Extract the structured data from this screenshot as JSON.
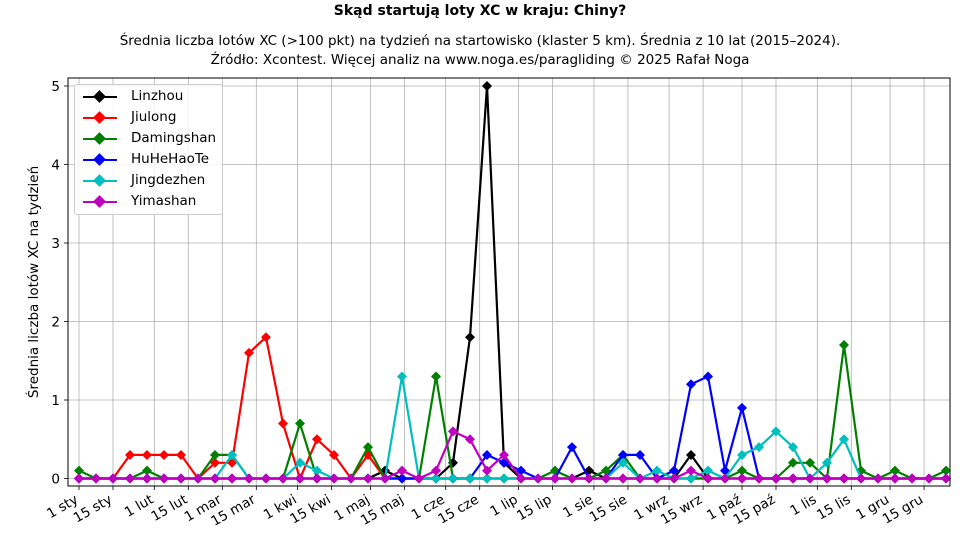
{
  "title": "Skąd startują loty XC w kraju: Chiny?",
  "subtitle_line1": "Średnia liczba lotów XC (>100 pkt) na tydzień na startowisko (klaster 5 km). Średnia z 10 lat (2015–2024).",
  "subtitle_line2": "Źródło: Xcontest. Więcej analiz na www.noga.es/paragliding © 2025 Rafał Noga",
  "chart_data": {
    "type": "line",
    "xlabel": "",
    "ylabel": "Średnia liczba lotów XC na tydzień",
    "ylim": [
      -0.1,
      5.1
    ],
    "yticks": [
      0,
      1,
      2,
      3,
      4,
      5
    ],
    "grid": true,
    "legend_position": "top-left",
    "x_weeks": [
      1,
      2,
      3,
      4,
      5,
      6,
      7,
      8,
      9,
      10,
      11,
      12,
      13,
      14,
      15,
      16,
      17,
      18,
      19,
      20,
      21,
      22,
      23,
      24,
      25,
      26,
      27,
      28,
      29,
      30,
      31,
      32,
      33,
      34,
      35,
      36,
      37,
      38,
      39,
      40,
      41,
      42,
      43,
      44,
      45,
      46,
      47,
      48,
      49,
      50,
      51,
      52
    ],
    "xticks": [
      {
        "label": "1 sty",
        "week": 0.0
      },
      {
        "label": "15 sty",
        "week": 2.0
      },
      {
        "label": "1 lut",
        "week": 4.43
      },
      {
        "label": "15 lut",
        "week": 6.43
      },
      {
        "label": "1 mar",
        "week": 8.43
      },
      {
        "label": "15 mar",
        "week": 10.43
      },
      {
        "label": "1 kwi",
        "week": 12.86
      },
      {
        "label": "15 kwi",
        "week": 14.86
      },
      {
        "label": "1 maj",
        "week": 17.14
      },
      {
        "label": "15 maj",
        "week": 19.14
      },
      {
        "label": "1 cze",
        "week": 21.57
      },
      {
        "label": "15 cze",
        "week": 23.57
      },
      {
        "label": "1 lip",
        "week": 25.86
      },
      {
        "label": "15 lip",
        "week": 27.86
      },
      {
        "label": "1 sie",
        "week": 30.29
      },
      {
        "label": "15 sie",
        "week": 32.29
      },
      {
        "label": "1 wrz",
        "week": 34.71
      },
      {
        "label": "15 wrz",
        "week": 36.71
      },
      {
        "label": "1 paź",
        "week": 39.0
      },
      {
        "label": "15 paź",
        "week": 41.0
      },
      {
        "label": "1 lis",
        "week": 43.43
      },
      {
        "label": "15 lis",
        "week": 45.43
      },
      {
        "label": "1 gru",
        "week": 47.71
      },
      {
        "label": "15 gru",
        "week": 49.71
      }
    ],
    "series": [
      {
        "name": "Linzhou",
        "color": "#000000",
        "values": [
          0,
          0,
          0,
          0,
          0,
          0,
          0,
          0,
          0,
          0,
          0,
          0,
          0,
          0,
          0,
          0,
          0,
          0,
          0.1,
          0,
          0,
          0,
          0.2,
          1.8,
          5.0,
          0.2,
          0,
          0,
          0,
          0,
          0.1,
          0,
          0,
          0,
          0,
          0,
          0.3,
          0,
          0,
          0,
          0,
          0,
          0,
          0,
          0,
          0,
          0,
          0,
          0,
          0,
          0,
          0
        ]
      },
      {
        "name": "Jiulong",
        "color": "#ff0000",
        "values": [
          0,
          0,
          0,
          0.3,
          0.3,
          0.3,
          0.3,
          0,
          0.2,
          0.2,
          1.6,
          1.8,
          0.7,
          0,
          0.5,
          0.3,
          0,
          0.3,
          0,
          0,
          0,
          0,
          0,
          0,
          0,
          0,
          0,
          0,
          0,
          0,
          0,
          0,
          0,
          0,
          0,
          0,
          0,
          0,
          0,
          0,
          0,
          0,
          0,
          0,
          0,
          0,
          0,
          0,
          0,
          0,
          0,
          0
        ]
      },
      {
        "name": "Damingshan",
        "color": "#008000",
        "values": [
          0.1,
          0,
          0,
          0,
          0.1,
          0,
          0,
          0,
          0.3,
          0.3,
          0,
          0,
          0,
          0.7,
          0,
          0,
          0,
          0.4,
          0,
          0,
          0,
          1.3,
          0,
          0,
          0,
          0,
          0,
          0,
          0.1,
          0,
          0,
          0.1,
          0.3,
          0,
          0,
          0,
          0,
          0,
          0,
          0.1,
          0,
          0,
          0.2,
          0.2,
          0,
          1.7,
          0.1,
          0,
          0.1,
          0,
          0,
          0.1
        ]
      },
      {
        "name": "HuHeHaoTe",
        "color": "#0000ff",
        "values": [
          0,
          0,
          0,
          0,
          0,
          0,
          0,
          0,
          0,
          0,
          0,
          0,
          0,
          0,
          0,
          0,
          0,
          0,
          0,
          0,
          0,
          0,
          0,
          0,
          0.3,
          0.2,
          0.1,
          0,
          0,
          0.4,
          0,
          0,
          0.3,
          0.3,
          0,
          0.1,
          1.2,
          1.3,
          0.1,
          0.9,
          0,
          0,
          0,
          0,
          0,
          0,
          0,
          0,
          0,
          0,
          0,
          0
        ]
      },
      {
        "name": "Jingdezhen",
        "color": "#00bfbf",
        "values": [
          0,
          0,
          0,
          0,
          0,
          0,
          0,
          0,
          0,
          0.3,
          0,
          0,
          0,
          0.2,
          0.1,
          0,
          0,
          0,
          0,
          1.3,
          0,
          0,
          0,
          0,
          0,
          0,
          0,
          0,
          0,
          0,
          0,
          0,
          0.2,
          0,
          0.1,
          0,
          0,
          0.1,
          0,
          0.3,
          0.4,
          0.6,
          0.4,
          0,
          0.2,
          0.5,
          0,
          0,
          0,
          0,
          0,
          0
        ]
      },
      {
        "name": "Yimashan",
        "color": "#bf00bf",
        "values": [
          0,
          0,
          0,
          0,
          0,
          0,
          0,
          0,
          0,
          0,
          0,
          0,
          0,
          0,
          0,
          0,
          0,
          0,
          0,
          0.1,
          0,
          0.1,
          0.6,
          0.5,
          0.1,
          0.3,
          0,
          0,
          0,
          0,
          0,
          0,
          0,
          0,
          0,
          0,
          0.1,
          0,
          0,
          0,
          0,
          0,
          0,
          0,
          0,
          0,
          0,
          0,
          0,
          0,
          0,
          0
        ]
      }
    ]
  }
}
